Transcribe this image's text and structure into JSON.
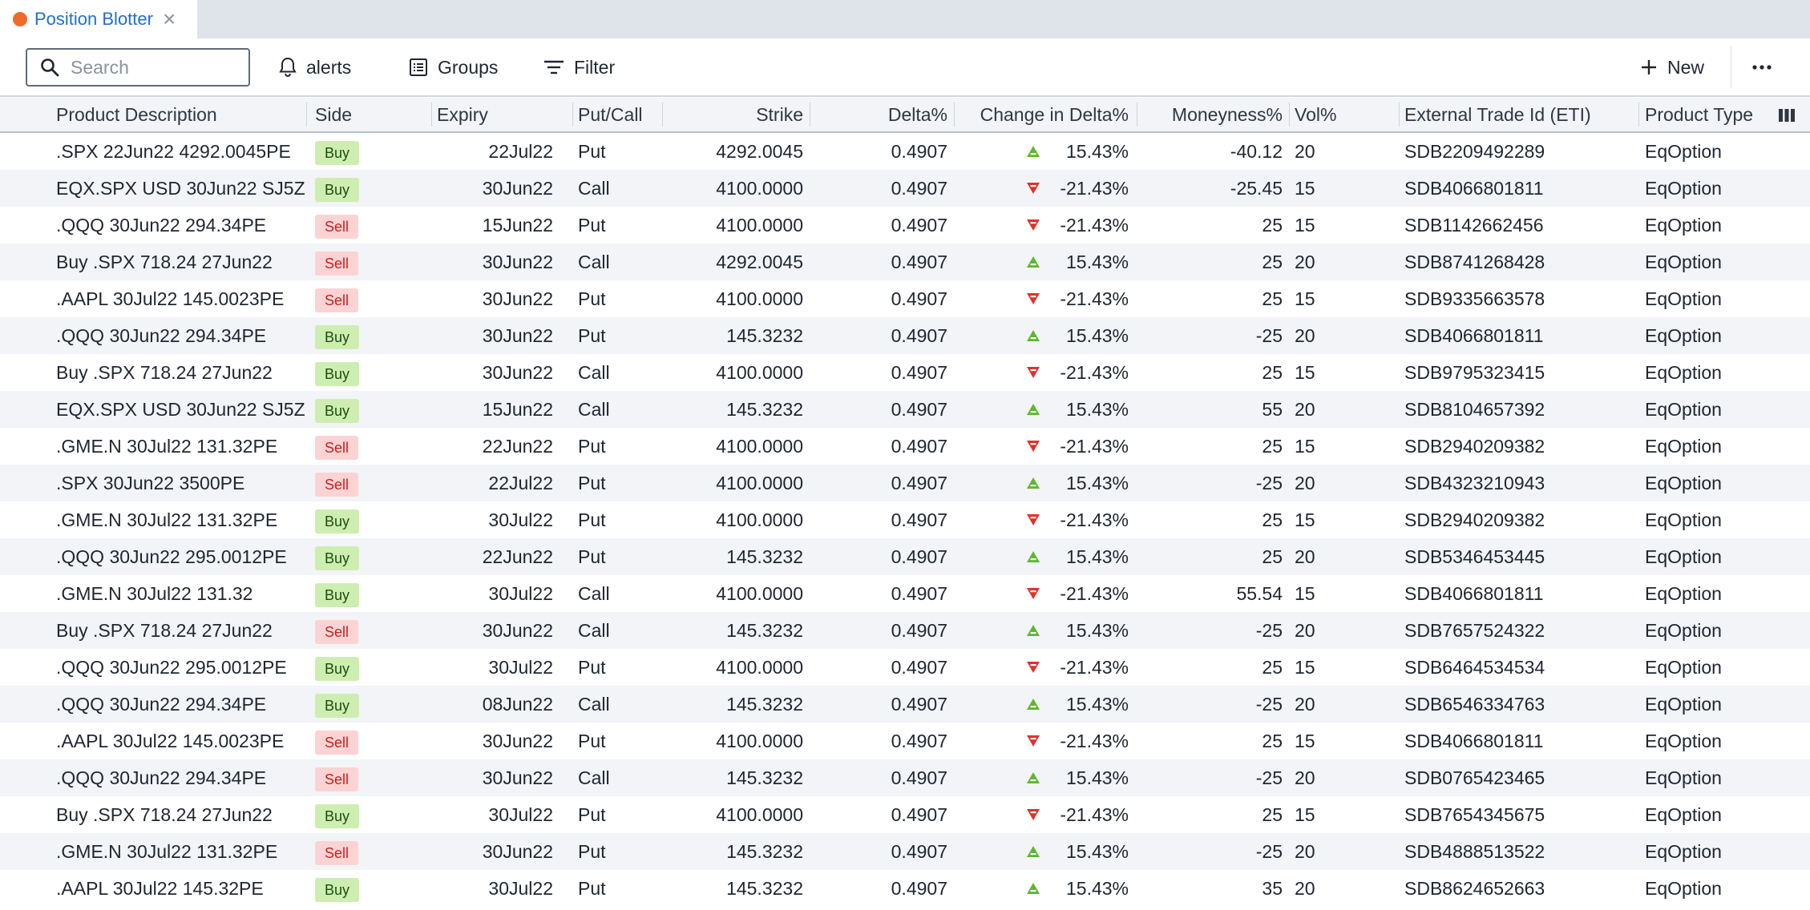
{
  "tab": {
    "title": "Position Blotter",
    "close_glyph": "×",
    "dot_color": "#f06a2a"
  },
  "toolbar": {
    "search_placeholder": "Search",
    "alerts_label": "alerts",
    "groups_label": "Groups",
    "filter_label": "Filter",
    "new_label": "New"
  },
  "columns": [
    "Product Description",
    "Side",
    "Expiry",
    "Put/Call",
    "Strike",
    "Delta%",
    "Change in Delta%",
    "Moneyness%",
    "Vol%",
    "External Trade Id (ETI)",
    "Product Type"
  ],
  "colors": {
    "buy_bg": "#cdeeb0",
    "sell_bg": "#fcd3d3",
    "up": "#5cb82c",
    "down": "#e0312a",
    "accent": "#1f6ed4"
  },
  "rows": [
    {
      "desc": ".SPX 22Jun22 4292.0045PE",
      "side": "Buy",
      "expiry": "22Jul22",
      "pc": "Put",
      "strike": "4292.0045",
      "delta": "0.4907",
      "dir": "up",
      "change": "15.43%",
      "money": "-40.12",
      "vol": "20",
      "eti": "SDB2209492289",
      "ptype": "EqOption"
    },
    {
      "desc": "EQX.SPX USD 30Jun22 SJ5Z",
      "side": "Buy",
      "expiry": "30Jun22",
      "pc": "Call",
      "strike": "4100.0000",
      "delta": "0.4907",
      "dir": "down",
      "change": "-21.43%",
      "money": "-25.45",
      "vol": "15",
      "eti": "SDB4066801811",
      "ptype": "EqOption"
    },
    {
      "desc": ".QQQ 30Jun22 294.34PE",
      "side": "Sell",
      "expiry": "15Jun22",
      "pc": "Put",
      "strike": "4100.0000",
      "delta": "0.4907",
      "dir": "down",
      "change": "-21.43%",
      "money": "25",
      "vol": "15",
      "eti": "SDB1142662456",
      "ptype": "EqOption"
    },
    {
      "desc": "Buy .SPX 718.24 27Jun22",
      "side": "Sell",
      "expiry": "30Jun22",
      "pc": "Call",
      "strike": "4292.0045",
      "delta": "0.4907",
      "dir": "up",
      "change": "15.43%",
      "money": "25",
      "vol": "20",
      "eti": "SDB8741268428",
      "ptype": "EqOption"
    },
    {
      "desc": ".AAPL 30Jul22 145.0023PE",
      "side": "Sell",
      "expiry": "30Jun22",
      "pc": "Put",
      "strike": "4100.0000",
      "delta": "0.4907",
      "dir": "down",
      "change": "-21.43%",
      "money": "25",
      "vol": "15",
      "eti": "SDB9335663578",
      "ptype": "EqOption"
    },
    {
      "desc": ".QQQ 30Jun22 294.34PE",
      "side": "Buy",
      "expiry": "30Jun22",
      "pc": "Put",
      "strike": "145.3232",
      "delta": "0.4907",
      "dir": "up",
      "change": "15.43%",
      "money": "-25",
      "vol": "20",
      "eti": "SDB4066801811",
      "ptype": "EqOption"
    },
    {
      "desc": "Buy .SPX 718.24 27Jun22",
      "side": "Buy",
      "expiry": "30Jun22",
      "pc": "Call",
      "strike": "4100.0000",
      "delta": "0.4907",
      "dir": "down",
      "change": "-21.43%",
      "money": "25",
      "vol": "15",
      "eti": "SDB9795323415",
      "ptype": "EqOption"
    },
    {
      "desc": "EQX.SPX USD 30Jun22 SJ5Z",
      "side": "Buy",
      "expiry": "15Jun22",
      "pc": "Call",
      "strike": "145.3232",
      "delta": "0.4907",
      "dir": "up",
      "change": "15.43%",
      "money": "55",
      "vol": "20",
      "eti": "SDB8104657392",
      "ptype": "EqOption"
    },
    {
      "desc": ".GME.N 30Jul22 131.32PE",
      "side": "Sell",
      "expiry": "22Jun22",
      "pc": "Put",
      "strike": "4100.0000",
      "delta": "0.4907",
      "dir": "down",
      "change": "-21.43%",
      "money": "25",
      "vol": "15",
      "eti": "SDB2940209382",
      "ptype": "EqOption"
    },
    {
      "desc": ".SPX 30Jun22 3500PE",
      "side": "Sell",
      "expiry": "22Jul22",
      "pc": "Put",
      "strike": "4100.0000",
      "delta": "0.4907",
      "dir": "up",
      "change": "15.43%",
      "money": "-25",
      "vol": "20",
      "eti": "SDB4323210943",
      "ptype": "EqOption"
    },
    {
      "desc": ".GME.N 30Jul22 131.32PE",
      "side": "Buy",
      "expiry": "30Jul22",
      "pc": "Put",
      "strike": "4100.0000",
      "delta": "0.4907",
      "dir": "down",
      "change": "-21.43%",
      "money": "25",
      "vol": "15",
      "eti": "SDB2940209382",
      "ptype": "EqOption"
    },
    {
      "desc": ".QQQ 30Jun22 295.0012PE",
      "side": "Buy",
      "expiry": "22Jun22",
      "pc": "Put",
      "strike": "145.3232",
      "delta": "0.4907",
      "dir": "up",
      "change": "15.43%",
      "money": "25",
      "vol": "20",
      "eti": "SDB5346453445",
      "ptype": "EqOption"
    },
    {
      "desc": ".GME.N 30Jul22 131.32",
      "side": "Buy",
      "expiry": "30Jul22",
      "pc": "Call",
      "strike": "4100.0000",
      "delta": "0.4907",
      "dir": "down",
      "change": "-21.43%",
      "money": "55.54",
      "vol": "15",
      "eti": "SDB4066801811",
      "ptype": "EqOption"
    },
    {
      "desc": "Buy .SPX 718.24 27Jun22",
      "side": "Sell",
      "expiry": "30Jun22",
      "pc": "Call",
      "strike": "145.3232",
      "delta": "0.4907",
      "dir": "up",
      "change": "15.43%",
      "money": "-25",
      "vol": "20",
      "eti": "SDB7657524322",
      "ptype": "EqOption"
    },
    {
      "desc": ".QQQ 30Jun22 295.0012PE",
      "side": "Buy",
      "expiry": "30Jul22",
      "pc": "Put",
      "strike": "4100.0000",
      "delta": "0.4907",
      "dir": "down",
      "change": "-21.43%",
      "money": "25",
      "vol": "15",
      "eti": "SDB6464534534",
      "ptype": "EqOption"
    },
    {
      "desc": ".QQQ 30Jun22 294.34PE",
      "side": "Buy",
      "expiry": "08Jun22",
      "pc": "Call",
      "strike": "145.3232",
      "delta": "0.4907",
      "dir": "up",
      "change": "15.43%",
      "money": "-25",
      "vol": "20",
      "eti": "SDB6546334763",
      "ptype": "EqOption"
    },
    {
      "desc": ".AAPL 30Jul22 145.0023PE",
      "side": "Sell",
      "expiry": "30Jun22",
      "pc": "Put",
      "strike": "4100.0000",
      "delta": "0.4907",
      "dir": "down",
      "change": "-21.43%",
      "money": "25",
      "vol": "15",
      "eti": "SDB4066801811",
      "ptype": "EqOption"
    },
    {
      "desc": ".QQQ 30Jun22 294.34PE",
      "side": "Sell",
      "expiry": "30Jun22",
      "pc": "Call",
      "strike": "145.3232",
      "delta": "0.4907",
      "dir": "up",
      "change": "15.43%",
      "money": "-25",
      "vol": "20",
      "eti": "SDB0765423465",
      "ptype": "EqOption"
    },
    {
      "desc": "Buy .SPX 718.24 27Jun22",
      "side": "Buy",
      "expiry": "30Jul22",
      "pc": "Put",
      "strike": "4100.0000",
      "delta": "0.4907",
      "dir": "down",
      "change": "-21.43%",
      "money": "25",
      "vol": "15",
      "eti": "SDB7654345675",
      "ptype": "EqOption"
    },
    {
      "desc": ".GME.N 30Jul22 131.32PE",
      "side": "Sell",
      "expiry": "30Jun22",
      "pc": "Put",
      "strike": "145.3232",
      "delta": "0.4907",
      "dir": "up",
      "change": "15.43%",
      "money": "-25",
      "vol": "20",
      "eti": "SDB4888513522",
      "ptype": "EqOption"
    },
    {
      "desc": ".AAPL 30Jul22 145.32PE",
      "side": "Buy",
      "expiry": "30Jul22",
      "pc": "Put",
      "strike": "145.3232",
      "delta": "0.4907",
      "dir": "up",
      "change": "15.43%",
      "money": "35",
      "vol": "20",
      "eti": "SDB8624652663",
      "ptype": "EqOption"
    }
  ]
}
